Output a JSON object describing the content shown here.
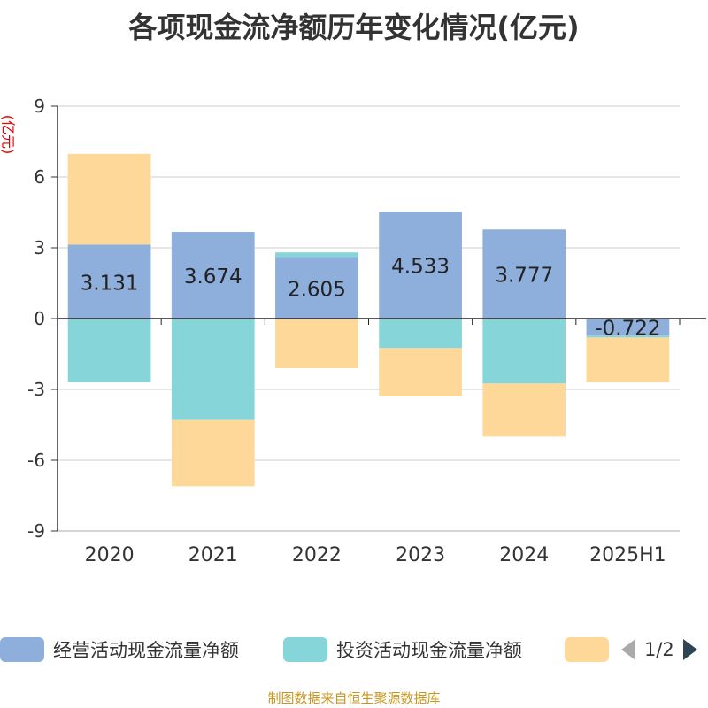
{
  "title": "各项现金流净额历年变化情况(亿元)",
  "unit_label": "(亿元)",
  "source": "制图数据来自恒生聚源数据库",
  "legend": {
    "items": [
      {
        "label": "经营活动现金流量净额",
        "color": "#8eaedb"
      },
      {
        "label": "投资活动现金流量净额",
        "color": "#86d5d8"
      },
      {
        "label": "",
        "color": "#fdd899"
      }
    ],
    "pager": "1/2"
  },
  "chart_data": {
    "type": "bar",
    "stacked": true,
    "categories": [
      "2020",
      "2021",
      "2022",
      "2023",
      "2024",
      "2025H1"
    ],
    "ylim": [
      -9,
      9
    ],
    "yticks": [
      -9,
      -6,
      -3,
      0,
      3,
      6,
      9
    ],
    "grid": true,
    "legend_position": "bottom",
    "series": [
      {
        "name": "经营活动现金流量净额",
        "color": "#8eaedb",
        "values": [
          3.131,
          3.674,
          2.605,
          4.533,
          3.777,
          -0.722
        ],
        "labels": [
          "3.131",
          "3.674",
          "2.605",
          "4.533",
          "3.777",
          "-0.722"
        ]
      },
      {
        "name": "投资活动现金流量净额",
        "color": "#86d5d8",
        "values": [
          -2.7,
          -4.3,
          0.2,
          -1.25,
          -2.75,
          -0.08
        ]
      },
      {
        "color": "#fdd899",
        "values": [
          3.85,
          -2.8,
          -2.1,
          -2.05,
          -2.25,
          -1.9
        ]
      }
    ]
  }
}
